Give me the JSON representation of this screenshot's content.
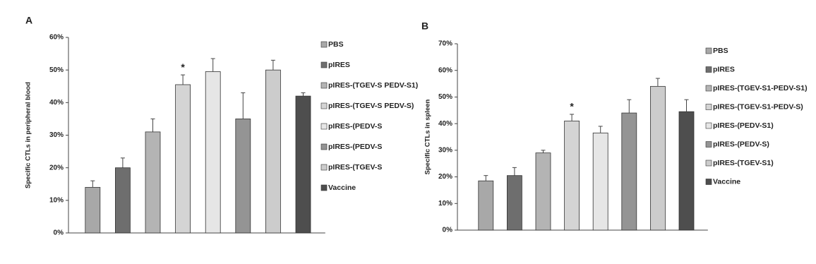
{
  "chart_data": [
    {
      "type": "bar",
      "panel": "A",
      "ylabel": "Specific CTLs in peripheral blood",
      "ylim": [
        0,
        60
      ],
      "yticks": [
        {
          "value": 0,
          "label": "0%"
        },
        {
          "value": 10,
          "label": "10%"
        },
        {
          "value": 20,
          "label": "20%"
        },
        {
          "value": 30,
          "label": "30%"
        },
        {
          "value": 40,
          "label": "40%"
        },
        {
          "value": 50,
          "label": "50%"
        },
        {
          "value": 60,
          "label": "60%"
        }
      ],
      "annotation": "*",
      "series": [
        {
          "name": "PBS",
          "color": "#a8a8a8",
          "values": [
            14
          ],
          "errors": [
            2
          ]
        },
        {
          "name": "pIRES",
          "color": "#6e6e6e",
          "values": [
            20
          ],
          "errors": [
            3
          ]
        },
        {
          "name": "pIRES-(TGEV-S PEDV-S1)",
          "color": "#b4b4b4",
          "values": [
            31
          ],
          "errors": [
            4
          ]
        },
        {
          "name": "pIRES-(TGEV-S PEDV-S)",
          "color": "#d4d4d4",
          "values": [
            45.5
          ],
          "errors": [
            3
          ]
        },
        {
          "name": "pIRES-(PEDV-S",
          "color": "#e6e6e6",
          "values": [
            49.5
          ],
          "errors": [
            4
          ]
        },
        {
          "name": "pIRES-(PEDV-S",
          "color": "#949494",
          "values": [
            35
          ],
          "errors": [
            8
          ]
        },
        {
          "name": "pIRES-(TGEV-S",
          "color": "#cccccc",
          "values": [
            50
          ],
          "errors": [
            3
          ]
        },
        {
          "name": "Vaccine",
          "color": "#4e4e4e",
          "values": [
            42
          ],
          "errors": [
            1
          ]
        }
      ]
    },
    {
      "type": "bar",
      "panel": "B",
      "ylabel": "Specific CTLs in spleen",
      "ylim": [
        0,
        70
      ],
      "yticks": [
        {
          "value": 0,
          "label": "0%"
        },
        {
          "value": 10,
          "label": "10%"
        },
        {
          "value": 20,
          "label": "20%"
        },
        {
          "value": 30,
          "label": "30%"
        },
        {
          "value": 40,
          "label": "40%"
        },
        {
          "value": 50,
          "label": "50%"
        },
        {
          "value": 60,
          "label": "60%"
        },
        {
          "value": 70,
          "label": "70%"
        }
      ],
      "annotation": "*",
      "series": [
        {
          "name": "PBS",
          "color": "#a8a8a8",
          "values": [
            18.5
          ],
          "errors": [
            2
          ]
        },
        {
          "name": "pIRES",
          "color": "#6e6e6e",
          "values": [
            20.5
          ],
          "errors": [
            3
          ]
        },
        {
          "name": "pIRES-(TGEV-S1-PEDV-S1)",
          "color": "#b4b4b4",
          "values": [
            29
          ],
          "errors": [
            1
          ]
        },
        {
          "name": "pIRES-(TGEV-S1-PEDV-S)",
          "color": "#d4d4d4",
          "values": [
            41
          ],
          "errors": [
            2.5
          ]
        },
        {
          "name": "pIRES-(PEDV-S1)",
          "color": "#e6e6e6",
          "values": [
            36.5
          ],
          "errors": [
            2.5
          ]
        },
        {
          "name": "pIRES-(PEDV-S)",
          "color": "#949494",
          "values": [
            44
          ],
          "errors": [
            5
          ]
        },
        {
          "name": "pIRES-(TGEV-S1)",
          "color": "#cccccc",
          "values": [
            54
          ],
          "errors": [
            3
          ]
        },
        {
          "name": "Vaccine",
          "color": "#4e4e4e",
          "values": [
            44.5
          ],
          "errors": [
            4.5
          ]
        }
      ]
    }
  ]
}
